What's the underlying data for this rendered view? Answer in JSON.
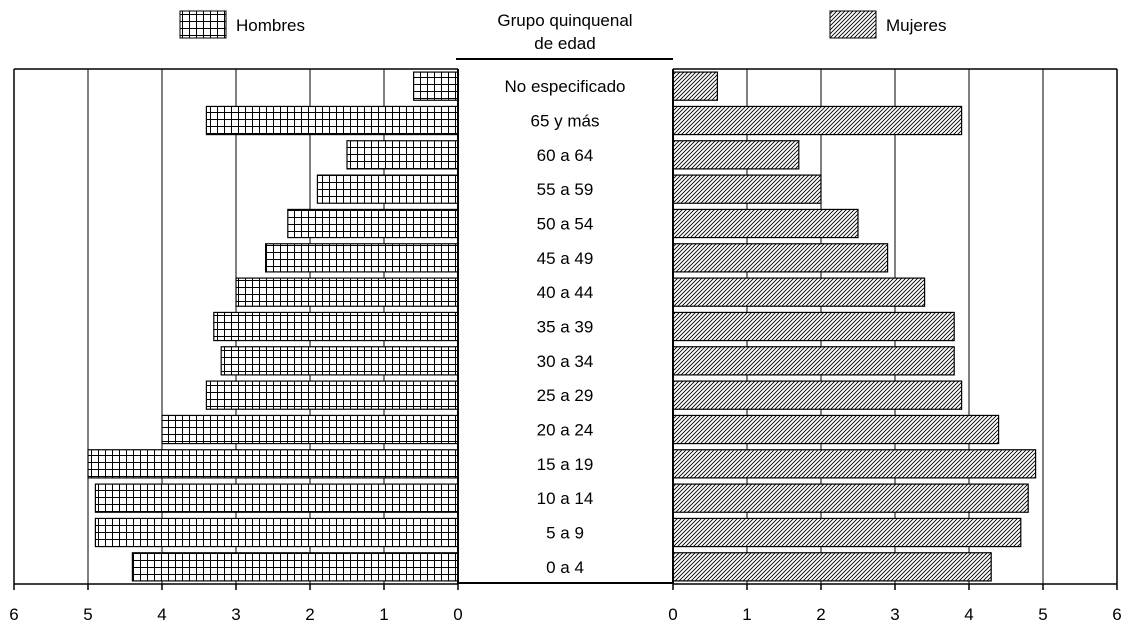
{
  "chart_data": {
    "type": "bar",
    "orientation": "horizontal",
    "layout": "population-pyramid",
    "center_header": [
      "Grupo quinquenal",
      "de edad"
    ],
    "categories": [
      "No especificado",
      "65 y más",
      "60 a 64",
      "55 a 59",
      "50 a 54",
      "45 a 49",
      "40 a 44",
      "35 a 39",
      "30 a 34",
      "25 a 29",
      "20 a 24",
      "15 a 19",
      "10 a 14",
      "5 a 9",
      "0 a 4"
    ],
    "series": [
      {
        "name": "Hombres",
        "side": "left",
        "pattern": "grid",
        "values": [
          0.6,
          3.4,
          1.5,
          1.9,
          2.3,
          2.6,
          3.0,
          3.3,
          3.2,
          3.4,
          4.0,
          5.0,
          4.9,
          4.9,
          4.4
        ]
      },
      {
        "name": "Mujeres",
        "side": "right",
        "pattern": "diagonal-hatch",
        "values": [
          0.6,
          3.9,
          1.7,
          2.0,
          2.5,
          2.9,
          3.4,
          3.8,
          3.8,
          3.9,
          4.4,
          4.9,
          4.8,
          4.7,
          4.3
        ]
      }
    ],
    "xlim": [
      0,
      6
    ],
    "xticks": [
      "0",
      "1",
      "2",
      "3",
      "4",
      "5",
      "6"
    ],
    "grid": true,
    "legend": "top"
  }
}
